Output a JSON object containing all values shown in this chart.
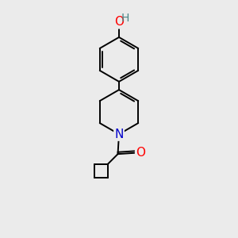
{
  "background_color": "#ebebeb",
  "bond_color": "#000000",
  "atom_colors": {
    "O": "#ff0000",
    "N": "#0000cc",
    "C": "#000000"
  },
  "font_size": 10,
  "figsize": [
    3.0,
    3.0
  ],
  "dpi": 100
}
